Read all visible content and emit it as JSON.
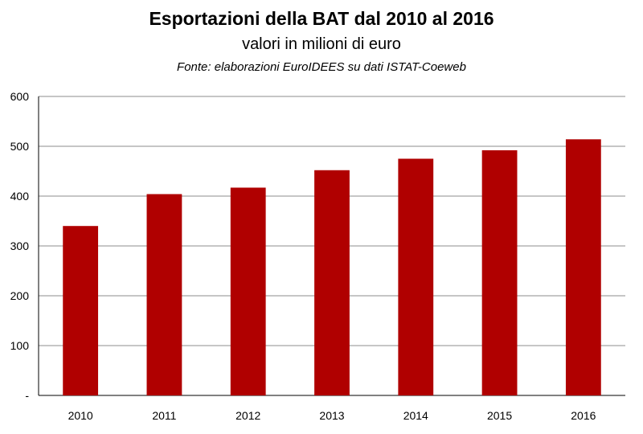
{
  "chart_data": {
    "type": "bar",
    "title": "Esportazioni della BAT dal 2010 al 2016",
    "subtitle": "valori in milioni di euro",
    "source": "Fonte: elaborazioni EuroIDEES su dati ISTAT-Coeweb",
    "categories": [
      "2010",
      "2011",
      "2012",
      "2013",
      "2014",
      "2015",
      "2016"
    ],
    "values": [
      340,
      404,
      417,
      452,
      475,
      492,
      514
    ],
    "xlabel": "",
    "ylabel": "",
    "ylim": [
      0,
      600
    ],
    "yticks": [
      {
        "value": 0,
        "label": "-"
      },
      {
        "value": 100,
        "label": "100"
      },
      {
        "value": 200,
        "label": "200"
      },
      {
        "value": 300,
        "label": "300"
      },
      {
        "value": 400,
        "label": "400"
      },
      {
        "value": 500,
        "label": "500"
      },
      {
        "value": 600,
        "label": "600"
      }
    ],
    "grid": true,
    "legend": "none",
    "bar_color": "#b00000",
    "grid_color": "#8c8c8c"
  }
}
